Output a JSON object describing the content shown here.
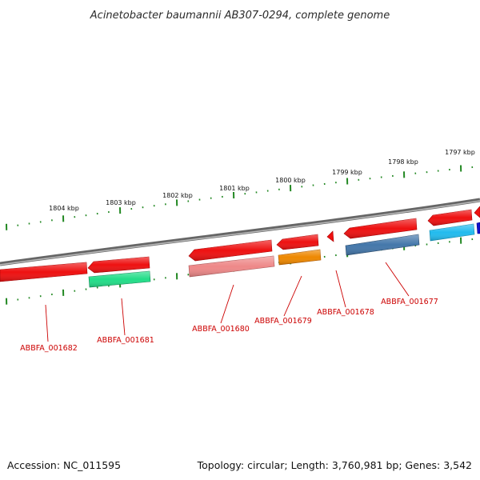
{
  "title": "Acinetobacter baumannii AB307-0294, complete genome",
  "footer": {
    "accession": "Accession: NC_011595",
    "summary": "Topology: circular; Length: 3,760,981 bp; Genes: 3,542"
  },
  "scale": {
    "tick_labels": [
      "1804 kbp",
      "1803 kbp",
      "1802 kbp",
      "1801 kbp",
      "1800 kbp",
      "1799 kbp",
      "1798 kbp",
      "1797 kbp"
    ]
  },
  "genes": [
    {
      "label": "ABBFA_001682",
      "color": "#ee1111"
    },
    {
      "label": "ABBFA_001681",
      "color": "#22dd88"
    },
    {
      "label": "ABBFA_001680",
      "color": "#ee8888"
    },
    {
      "label": "ABBFA_001679",
      "color": "#ee8800"
    },
    {
      "label": "ABBFA_001678",
      "color": "#ee1111"
    },
    {
      "label": "ABBFA_001677",
      "color": "#4477aa"
    }
  ],
  "unlabeled_gene_colors": [
    "#ee1111",
    "#ee1111",
    "#ee1111",
    "#ee1111",
    "#ee1111",
    "#22bbee",
    "#1111cc"
  ],
  "colors": {
    "backbone": "#888888",
    "tick": "#228822",
    "leader": "#cc0000"
  }
}
